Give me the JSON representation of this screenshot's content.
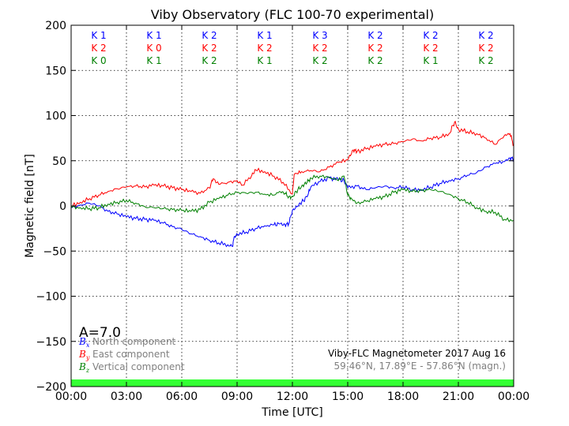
{
  "chart_data": {
    "type": "line",
    "title": "Viby Observatory (FLC 100-70 experimental)",
    "xlabel": "Time [UTC]",
    "ylabel": "Magnetic field [nT]",
    "xlim": [
      0,
      24
    ],
    "ylim": [
      -200,
      200
    ],
    "x_ticks": [
      0,
      3,
      6,
      9,
      12,
      15,
      18,
      21,
      24
    ],
    "x_tick_labels": [
      "00:00",
      "03:00",
      "06:00",
      "09:00",
      "12:00",
      "15:00",
      "18:00",
      "21:00",
      "00:00"
    ],
    "y_ticks": [
      -200,
      -150,
      -100,
      -50,
      0,
      50,
      100,
      150,
      200
    ],
    "y_tick_labels": [
      "−200",
      "−150",
      "−100",
      "−50",
      "0",
      "50",
      "100",
      "150",
      "200"
    ],
    "grid": true,
    "series": [
      {
        "name": "North component",
        "symbol": "B",
        "subscript": "x",
        "color": "#0000ff",
        "points": [
          [
            0,
            -2
          ],
          [
            0.5,
            1
          ],
          [
            1,
            3
          ],
          [
            1.5,
            0
          ],
          [
            2,
            -6
          ],
          [
            2.5,
            -9
          ],
          [
            3,
            -12
          ],
          [
            3.5,
            -14
          ],
          [
            4,
            -15
          ],
          [
            4.5,
            -16
          ],
          [
            5,
            -19
          ],
          [
            5.5,
            -23
          ],
          [
            6,
            -26
          ],
          [
            6.5,
            -31
          ],
          [
            7,
            -34
          ],
          [
            7.5,
            -38
          ],
          [
            8,
            -41
          ],
          [
            8.5,
            -43
          ],
          [
            8.75,
            -45
          ],
          [
            8.85,
            -34
          ],
          [
            9,
            -31
          ],
          [
            9.5,
            -29
          ],
          [
            10,
            -25
          ],
          [
            10.5,
            -22
          ],
          [
            11,
            -21
          ],
          [
            11.3,
            -20
          ],
          [
            11.6,
            -21
          ],
          [
            11.8,
            -20
          ],
          [
            12,
            -5
          ],
          [
            12.3,
            0
          ],
          [
            12.5,
            4
          ],
          [
            12.8,
            10
          ],
          [
            13,
            21
          ],
          [
            13.5,
            27
          ],
          [
            14,
            31
          ],
          [
            14.5,
            29
          ],
          [
            14.8,
            28
          ],
          [
            15,
            20
          ],
          [
            15.5,
            22
          ],
          [
            16,
            18
          ],
          [
            16.5,
            20
          ],
          [
            17,
            22
          ],
          [
            17.5,
            20
          ],
          [
            18,
            21
          ],
          [
            18.5,
            18
          ],
          [
            19,
            18
          ],
          [
            19.5,
            21
          ],
          [
            20,
            25
          ],
          [
            20.5,
            28
          ],
          [
            21,
            30
          ],
          [
            21.5,
            34
          ],
          [
            22,
            37
          ],
          [
            22.5,
            43
          ],
          [
            23,
            47
          ],
          [
            23.5,
            49
          ],
          [
            23.8,
            53
          ],
          [
            24,
            52
          ]
        ]
      },
      {
        "name": "East component",
        "symbol": "B",
        "subscript": "y",
        "color": "#ff0000",
        "points": [
          [
            0,
            0
          ],
          [
            0.5,
            4
          ],
          [
            1,
            8
          ],
          [
            1.5,
            12
          ],
          [
            2,
            16
          ],
          [
            2.5,
            19
          ],
          [
            3,
            21
          ],
          [
            3.5,
            22
          ],
          [
            4,
            21
          ],
          [
            4.5,
            23
          ],
          [
            5,
            22
          ],
          [
            5.5,
            20
          ],
          [
            6,
            18
          ],
          [
            6.5,
            16
          ],
          [
            7,
            14
          ],
          [
            7.5,
            20
          ],
          [
            7.7,
            30
          ],
          [
            8,
            24
          ],
          [
            8.5,
            26
          ],
          [
            9,
            28
          ],
          [
            9.3,
            23
          ],
          [
            9.8,
            34
          ],
          [
            10,
            40
          ],
          [
            10.5,
            38
          ],
          [
            11,
            33
          ],
          [
            11.5,
            26
          ],
          [
            12,
            13
          ],
          [
            12.1,
            35
          ],
          [
            12.5,
            38
          ],
          [
            13,
            39
          ],
          [
            13.5,
            38
          ],
          [
            14,
            43
          ],
          [
            14.5,
            48
          ],
          [
            15,
            51
          ],
          [
            15.3,
            62
          ],
          [
            15.5,
            60
          ],
          [
            16,
            63
          ],
          [
            16.5,
            66
          ],
          [
            17,
            68
          ],
          [
            17.5,
            69
          ],
          [
            18,
            71
          ],
          [
            18.5,
            74
          ],
          [
            19,
            72
          ],
          [
            19.5,
            75
          ],
          [
            20,
            76
          ],
          [
            20.5,
            80
          ],
          [
            20.8,
            93
          ],
          [
            21,
            85
          ],
          [
            21.5,
            82
          ],
          [
            22,
            80
          ],
          [
            22.5,
            75
          ],
          [
            23,
            68
          ],
          [
            23.5,
            78
          ],
          [
            23.8,
            80
          ],
          [
            24,
            67
          ]
        ]
      },
      {
        "name": "Vertical component",
        "symbol": "B",
        "subscript": "z",
        "color": "#008000",
        "points": [
          [
            0,
            -1
          ],
          [
            0.5,
            -2
          ],
          [
            1,
            -3
          ],
          [
            1.5,
            -2
          ],
          [
            2,
            2
          ],
          [
            2.5,
            4
          ],
          [
            3,
            6
          ],
          [
            3.5,
            3
          ],
          [
            4,
            -1
          ],
          [
            4.5,
            -2
          ],
          [
            5,
            -3
          ],
          [
            5.5,
            -4
          ],
          [
            6,
            -5
          ],
          [
            6.5,
            -6
          ],
          [
            7,
            -4
          ],
          [
            7.5,
            4
          ],
          [
            8,
            8
          ],
          [
            8.5,
            12
          ],
          [
            9,
            15
          ],
          [
            9.5,
            14
          ],
          [
            10,
            15
          ],
          [
            10.5,
            13
          ],
          [
            11,
            12
          ],
          [
            11.3,
            16
          ],
          [
            11.6,
            14
          ],
          [
            11.8,
            10
          ],
          [
            12,
            10
          ],
          [
            12.2,
            16
          ],
          [
            12.5,
            22
          ],
          [
            12.8,
            26
          ],
          [
            13,
            31
          ],
          [
            13.5,
            33
          ],
          [
            14,
            32
          ],
          [
            14.5,
            28
          ],
          [
            14.8,
            33
          ],
          [
            15,
            12
          ],
          [
            15.2,
            8
          ],
          [
            15.5,
            3
          ],
          [
            16,
            5
          ],
          [
            16.5,
            8
          ],
          [
            17,
            10
          ],
          [
            17.5,
            15
          ],
          [
            18,
            18
          ],
          [
            18.5,
            16
          ],
          [
            19,
            17
          ],
          [
            19.5,
            18
          ],
          [
            20,
            16
          ],
          [
            20.5,
            13
          ],
          [
            21,
            8
          ],
          [
            21.5,
            4
          ],
          [
            22,
            -2
          ],
          [
            22.5,
            -6
          ],
          [
            23,
            -7
          ],
          [
            23.5,
            -15
          ],
          [
            24,
            -16
          ]
        ]
      }
    ],
    "k_index_rows": [
      {
        "color": "#0000ff",
        "values": [
          "K 1",
          "K 1",
          "K 2",
          "K 1",
          "K 3",
          "K 2",
          "K 2",
          "K 2"
        ]
      },
      {
        "color": "#ff0000",
        "values": [
          "K 2",
          "K 0",
          "K 2",
          "K 2",
          "K 2",
          "K 2",
          "K 2",
          "K 2"
        ]
      },
      {
        "color": "#008000",
        "values": [
          "K 0",
          "K 1",
          "K 2",
          "K 1",
          "K 2",
          "K 2",
          "K 1",
          "K 2"
        ]
      }
    ],
    "a_index": "A=7.0",
    "instrument_text": "Viby-FLC Magnetometer 2017 Aug 16",
    "location_text": "59.46°N, 17.89°E - 57.86°N (magn.)",
    "status_bar_color": "#33ff33"
  }
}
